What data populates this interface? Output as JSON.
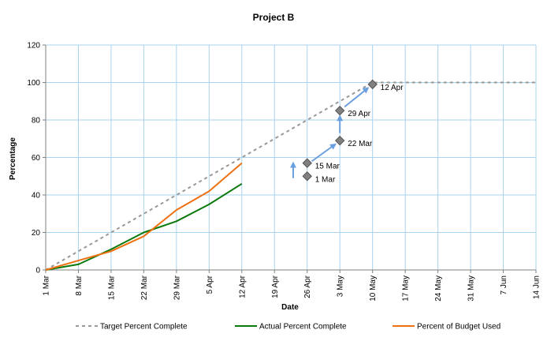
{
  "chart_data": {
    "type": "line",
    "title": "Project B",
    "xlabel": "Date",
    "ylabel": "Percentage",
    "ylim": [
      0,
      120
    ],
    "yticks": [
      0,
      20,
      40,
      60,
      80,
      100,
      120
    ],
    "xlim": [
      "2024-03-01",
      "2024-06-14"
    ],
    "xticks": [
      {
        "date": "2024-03-01",
        "label": "1 Mar"
      },
      {
        "date": "2024-03-08",
        "label": "8 Mar"
      },
      {
        "date": "2024-03-15",
        "label": "15 Mar"
      },
      {
        "date": "2024-03-22",
        "label": "22 Mar"
      },
      {
        "date": "2024-03-29",
        "label": "29 Mar"
      },
      {
        "date": "2024-04-05",
        "label": "5 Apr"
      },
      {
        "date": "2024-04-12",
        "label": "12 Apr"
      },
      {
        "date": "2024-04-19",
        "label": "19 Apr"
      },
      {
        "date": "2024-04-26",
        "label": "26 Apr"
      },
      {
        "date": "2024-05-03",
        "label": "3 May"
      },
      {
        "date": "2024-05-10",
        "label": "10 May"
      },
      {
        "date": "2024-05-17",
        "label": "17 May"
      },
      {
        "date": "2024-05-24",
        "label": "24 May"
      },
      {
        "date": "2024-05-31",
        "label": "31 May"
      },
      {
        "date": "2024-06-07",
        "label": "7 Jun"
      },
      {
        "date": "2024-06-14",
        "label": "14 Jun"
      }
    ],
    "grid": true,
    "legend_position": "bottom",
    "series": [
      {
        "name": "Target Percent Complete",
        "color": "#999999",
        "style": "dashed",
        "points": [
          {
            "x": "2024-03-01",
            "y": 0
          },
          {
            "x": "2024-04-12",
            "y": 60
          },
          {
            "x": "2024-05-10",
            "y": 100
          },
          {
            "x": "2024-06-14",
            "y": 100
          }
        ]
      },
      {
        "name": "Actual Percent Complete",
        "color": "#0b7a0b",
        "style": "solid",
        "points": [
          {
            "x": "2024-03-01",
            "y": 0
          },
          {
            "x": "2024-03-08",
            "y": 3
          },
          {
            "x": "2024-03-15",
            "y": 11
          },
          {
            "x": "2024-03-22",
            "y": 20
          },
          {
            "x": "2024-03-29",
            "y": 26
          },
          {
            "x": "2024-04-05",
            "y": 35
          },
          {
            "x": "2024-04-12",
            "y": 46
          }
        ]
      },
      {
        "name": "Percent of Budget Used",
        "color": "#ee7011",
        "style": "solid",
        "points": [
          {
            "x": "2024-03-01",
            "y": 0
          },
          {
            "x": "2024-03-08",
            "y": 5
          },
          {
            "x": "2024-03-15",
            "y": 10
          },
          {
            "x": "2024-03-22",
            "y": 18
          },
          {
            "x": "2024-03-29",
            "y": 32
          },
          {
            "x": "2024-04-05",
            "y": 42
          },
          {
            "x": "2024-04-12",
            "y": 57
          }
        ]
      }
    ],
    "forecast_points": {
      "color": "#808080",
      "points": [
        {
          "x": "2024-04-26",
          "y": 50,
          "label": "1 Mar"
        },
        {
          "x": "2024-04-26",
          "y": 57,
          "label": "15 Mar"
        },
        {
          "x": "2024-05-03",
          "y": 69,
          "label": "22 Mar"
        },
        {
          "x": "2024-05-03",
          "y": 85,
          "label": "29 Apr"
        },
        {
          "x": "2024-05-10",
          "y": 99,
          "label": "12 Apr"
        }
      ]
    },
    "arrows": {
      "color": "#6a9fe0",
      "items": [
        {
          "from": {
            "x": "2024-04-23",
            "y": 49
          },
          "to": {
            "x": "2024-04-23",
            "y": 57
          }
        },
        {
          "from": {
            "x": "2024-04-27",
            "y": 58
          },
          "to": {
            "x": "2024-05-02",
            "y": 67
          }
        },
        {
          "from": {
            "x": "2024-05-03",
            "y": 73
          },
          "to": {
            "x": "2024-05-03",
            "y": 82
          }
        },
        {
          "from": {
            "x": "2024-05-04",
            "y": 87
          },
          "to": {
            "x": "2024-05-09",
            "y": 97
          }
        }
      ]
    }
  },
  "colors": {
    "grid": "#a9d3ee",
    "axis": "#808080",
    "text": "#000000"
  }
}
